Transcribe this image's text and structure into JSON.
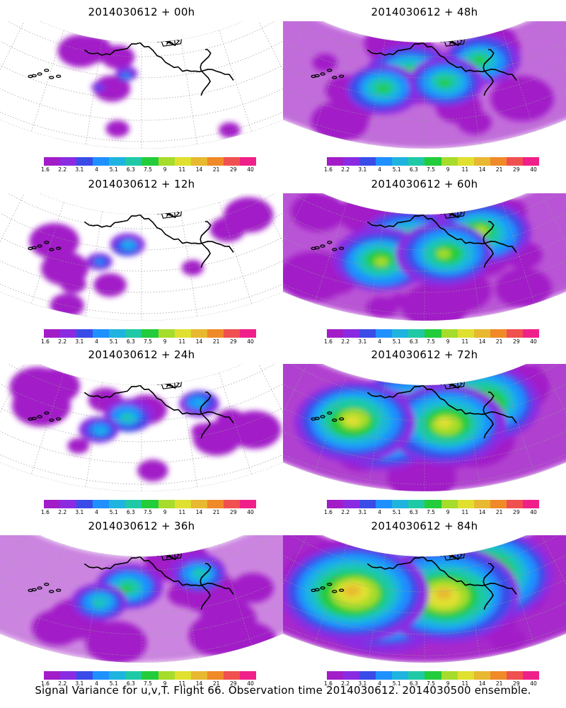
{
  "panels": [
    {
      "title": "2014030612 + 00h",
      "intensity": 0
    },
    {
      "title": "2014030612 + 48h",
      "intensity": 4
    },
    {
      "title": "2014030612 + 12h",
      "intensity": 1
    },
    {
      "title": "2014030612 + 60h",
      "intensity": 5
    },
    {
      "title": "2014030612 + 24h",
      "intensity": 2
    },
    {
      "title": "2014030612 + 72h",
      "intensity": 6
    },
    {
      "title": "2014030612 + 36h",
      "intensity": 3
    },
    {
      "title": "2014030612 + 84h",
      "intensity": 7
    }
  ],
  "colorbar": {
    "labels": [
      "1.6",
      "2.2",
      "3.1",
      "4",
      "5.1",
      "6.3",
      "7.5",
      "9",
      "11",
      "14",
      "21",
      "29",
      "40"
    ],
    "colors": [
      "#a21cc8",
      "#8a2be2",
      "#3a4be8",
      "#1e90ff",
      "#1fb4e0",
      "#1fc9a6",
      "#22cc3a",
      "#a6dc2c",
      "#e0e030",
      "#e8b830",
      "#f08a28",
      "#f05050",
      "#f0208a"
    ]
  },
  "footer": "Signal Variance for u,v,T. Flight 66. Observation time 2014030612. 2014030500 ensemble."
}
